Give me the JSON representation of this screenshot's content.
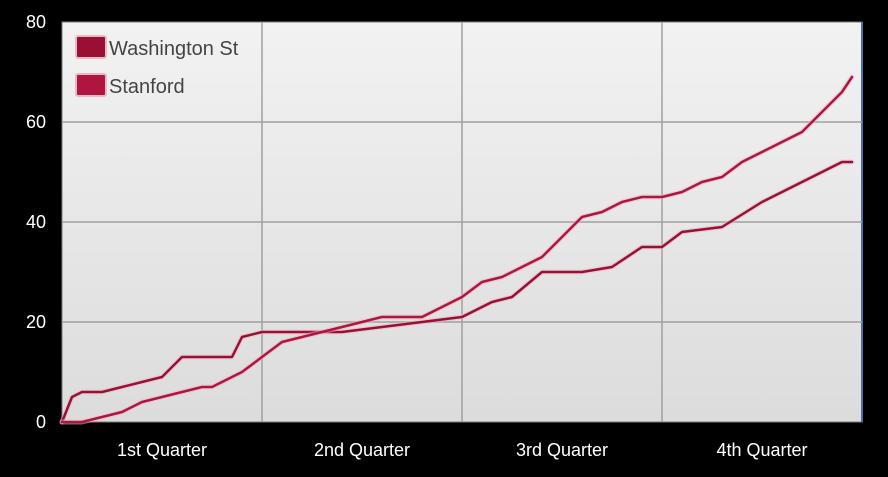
{
  "chart_data": {
    "type": "line",
    "title": "",
    "xlabel": "",
    "ylabel": "",
    "ylim": [
      0,
      80
    ],
    "yticks": [
      0,
      20,
      40,
      60,
      80
    ],
    "xlim": [
      0,
      4
    ],
    "x_categories": [
      "1st Quarter",
      "2nd Quarter",
      "3rd Quarter",
      "4th Quarter"
    ],
    "grid": true,
    "legend_position": "top-left",
    "series": [
      {
        "name": "Washington St",
        "color": "#9a1034",
        "x": [
          0,
          0.05,
          0.1,
          0.15,
          0.2,
          0.3,
          0.4,
          0.5,
          0.6,
          0.65,
          0.7,
          0.75,
          0.8,
          0.85,
          0.9,
          1.0,
          1.2,
          1.4,
          1.6,
          1.8,
          2.0,
          2.15,
          2.25,
          2.4,
          2.6,
          2.75,
          2.9,
          3.0,
          3.1,
          3.3,
          3.5,
          3.7,
          3.9,
          3.95
        ],
        "y": [
          0,
          5,
          6,
          6,
          6,
          7,
          8,
          9,
          13,
          13,
          13,
          13,
          13,
          13,
          17,
          18,
          18,
          18,
          19,
          20,
          21,
          24,
          25,
          30,
          30,
          31,
          35,
          35,
          38,
          39,
          44,
          48,
          52,
          52
        ]
      },
      {
        "name": "Stanford",
        "color": "#b01540",
        "x": [
          0,
          0.1,
          0.2,
          0.3,
          0.4,
          0.5,
          0.6,
          0.7,
          0.75,
          0.8,
          0.85,
          0.9,
          1.0,
          1.1,
          1.2,
          1.3,
          1.4,
          1.5,
          1.6,
          1.7,
          1.8,
          1.9,
          2.0,
          2.1,
          2.2,
          2.3,
          2.4,
          2.5,
          2.6,
          2.7,
          2.8,
          2.9,
          3.0,
          3.1,
          3.2,
          3.3,
          3.4,
          3.5,
          3.6,
          3.7,
          3.8,
          3.9,
          3.95
        ],
        "y": [
          0,
          0,
          1,
          2,
          4,
          5,
          6,
          7,
          7,
          8,
          9,
          10,
          13,
          16,
          17,
          18,
          19,
          20,
          21,
          21,
          21,
          23,
          25,
          28,
          29,
          31,
          33,
          37,
          41,
          42,
          44,
          45,
          45,
          46,
          48,
          49,
          52,
          54,
          56,
          58,
          62,
          66,
          69
        ]
      }
    ]
  }
}
